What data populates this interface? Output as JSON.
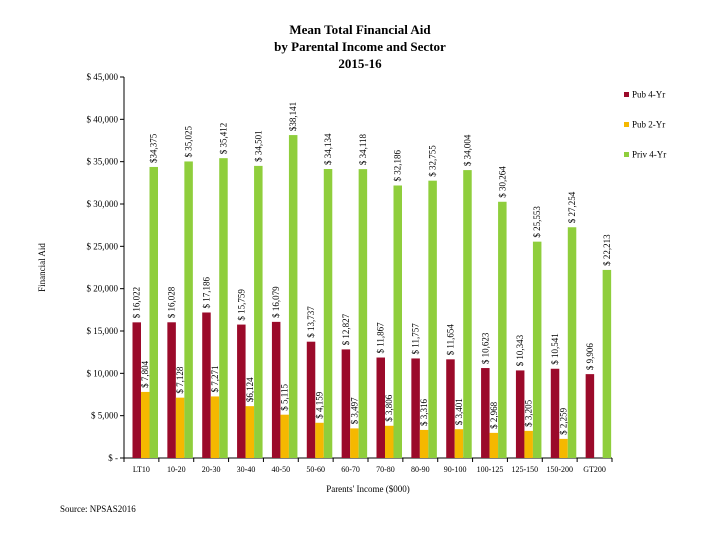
{
  "chart_data": {
    "type": "bar",
    "title": [
      "Mean Total Financial Aid",
      "by Parental Income and Sector",
      "2015-16"
    ],
    "xlabel": "Parents' Income ($000)",
    "ylabel": "Financial Aid",
    "ylim": [
      0,
      45000
    ],
    "ytick_step": 5000,
    "ytick_labels": [
      "$ -",
      "$ 5,000",
      "$ 10,000",
      "$ 15,000",
      "$ 20,000",
      "$ 25,000",
      "$ 30,000",
      "$ 35,000",
      "$ 40,000",
      "$ 45,000"
    ],
    "categories": [
      "LT10",
      "10-20",
      "20-30",
      "30-40",
      "40-50",
      "50-60",
      "60-70",
      "70-80",
      "80-90",
      "90-100",
      "100-125",
      "125-150",
      "150-200",
      "GT200"
    ],
    "legend_position": "right",
    "series": [
      {
        "name": "Pub 4-Yr",
        "color": "#9b0a2a",
        "values": [
          16022,
          16028,
          17186,
          15759,
          16079,
          13737,
          12827,
          11867,
          11757,
          11654,
          10623,
          10343,
          10541,
          9906
        ],
        "labels": [
          "$ 16,022",
          "$ 16,028",
          "$ 17,186",
          "$ 15,759",
          "$ 16,079",
          "$ 13,737",
          "$ 12,827",
          "$ 11,867",
          "$ 11,757",
          "$ 11,654",
          "$ 10,623",
          "$ 10,343",
          "$ 10,541",
          "$ 9,906"
        ]
      },
      {
        "name": "Pub 2-Yr",
        "color": "#f5b800",
        "values": [
          7804,
          7128,
          7271,
          6124,
          5115,
          4159,
          3497,
          3806,
          3316,
          3401,
          2968,
          3205,
          2259,
          null
        ],
        "labels": [
          "$ 7,804",
          "$ 7,128",
          "$ 7,271",
          "$6,124",
          "$ 5,115",
          "$ 4,159",
          "$ 3,497",
          "$ 3,806",
          "$ 3,316",
          "$ 3,401",
          "$ 2,968",
          "$ 3,205",
          "$ 2,259",
          null
        ]
      },
      {
        "name": "Priv 4-Yr",
        "color": "#8fce3c",
        "values": [
          34375,
          35025,
          35412,
          34501,
          38141,
          34134,
          34118,
          32186,
          32755,
          34004,
          30264,
          25553,
          27254,
          22213
        ],
        "labels": [
          "$34,375",
          "$ 35,025",
          "$ 35,412",
          "$ 34,501",
          "$38,141",
          "$ 34,134",
          "$ 34,118",
          "$ 32,186",
          "$ 32,755",
          "$ 34,004",
          "$ 30,264",
          "$ 25,553",
          "$ 27,254",
          "$ 22,213"
        ]
      }
    ]
  },
  "source": "Source: NPSAS2016"
}
